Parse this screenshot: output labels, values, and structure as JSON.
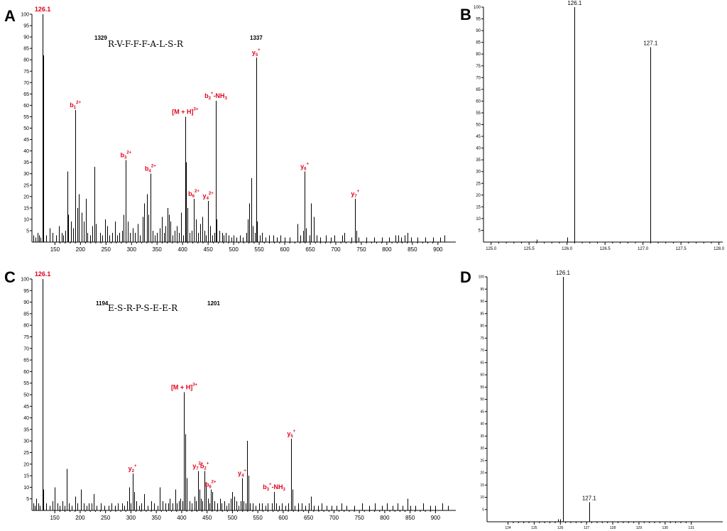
{
  "panels": {
    "A": {
      "letter": "A",
      "seq_start": "1329",
      "seq_end": "1337",
      "sequence": "R-V-F-F-F-A-L-S-R",
      "annotations": [
        {
          "text": "126.1",
          "x": 126.1,
          "y": 100
        },
        {
          "text": "b",
          "sub": "1",
          "sup": "2+",
          "x": 190,
          "y": 58
        },
        {
          "text": "b",
          "sub": "3",
          "sup": "2+",
          "x": 289,
          "y": 36
        },
        {
          "text": "b",
          "sub": "4",
          "sup": "2+",
          "x": 337,
          "y": 30
        },
        {
          "text": "[M + H]",
          "sup": "3+",
          "x": 405,
          "y": 55
        },
        {
          "text": "b",
          "sub": "2",
          "sup": "+",
          "suffix": "-NH",
          "suffix_sub": "3",
          "x": 465,
          "y": 62
        },
        {
          "text": "b",
          "sub": "6",
          "sup": "2+",
          "x": 422,
          "y": 19
        },
        {
          "text": "y",
          "sub": "4",
          "sup": "2+",
          "x": 450,
          "y": 18
        },
        {
          "text": "y",
          "sub": "5",
          "sup": "+",
          "x": 544,
          "y": 81
        },
        {
          "text": "y",
          "sub": "6",
          "sup": "+",
          "x": 639,
          "y": 31
        },
        {
          "text": "y",
          "sub": "7",
          "sup": "+",
          "x": 738,
          "y": 19
        }
      ]
    },
    "B": {
      "letter": "B",
      "labels": [
        "126.1",
        "127.1"
      ]
    },
    "C": {
      "letter": "C",
      "seq_start": "1194",
      "seq_end": "1201",
      "sequence": "E-S-R-P-S-E-E-R",
      "annotations": [
        {
          "text": "126.1",
          "x": 126.1,
          "y": 100
        },
        {
          "text": "[M + H]",
          "sup": "3+",
          "x": 405,
          "y": 51
        },
        {
          "text": "y",
          "sub": "2",
          "sup": "+",
          "x": 303,
          "y": 16
        },
        {
          "text": "y",
          "sub": "7",
          "sup": "2+",
          "x": 432,
          "y": 17
        },
        {
          "text": "b",
          "sub": "2",
          "sup": "+",
          "x": 445,
          "y": 17
        },
        {
          "text": "b",
          "sub": "6",
          "sup": "2+",
          "x": 457,
          "y": 9
        },
        {
          "text": "y",
          "sub": "4",
          "sup": "+",
          "x": 519,
          "y": 14
        },
        {
          "text": "b",
          "sub": "3",
          "sup": "+",
          "suffix": "-NH",
          "suffix_sub": "3",
          "x": 582,
          "y": 8
        },
        {
          "text": "y",
          "sub": "5",
          "sup": "+",
          "x": 616,
          "y": 31
        }
      ]
    },
    "D": {
      "letter": "D",
      "labels": [
        "126.1",
        "127.1"
      ]
    }
  },
  "chart_data": [
    {
      "type": "bar",
      "panel": "A",
      "xlim": [
        105,
        935
      ],
      "ylim": [
        0,
        100
      ],
      "xticks": [
        150,
        200,
        250,
        300,
        350,
        400,
        450,
        500,
        550,
        600,
        650,
        700,
        750,
        800,
        850,
        900
      ],
      "yticks": [
        5,
        10,
        15,
        20,
        25,
        30,
        35,
        40,
        45,
        50,
        55,
        60,
        65,
        70,
        75,
        80,
        85,
        90,
        95,
        100
      ],
      "peaks": [
        [
          108,
          3
        ],
        [
          112,
          2
        ],
        [
          116,
          4
        ],
        [
          119,
          3
        ],
        [
          121,
          2
        ],
        [
          126.1,
          100
        ],
        [
          127.1,
          82
        ],
        [
          133,
          3
        ],
        [
          140,
          6
        ],
        [
          146,
          4
        ],
        [
          152,
          3
        ],
        [
          158,
          7
        ],
        [
          163,
          4
        ],
        [
          166,
          3
        ],
        [
          170,
          5
        ],
        [
          174,
          31
        ],
        [
          176,
          12
        ],
        [
          182,
          9
        ],
        [
          186,
          6
        ],
        [
          190,
          58
        ],
        [
          194,
          15
        ],
        [
          197,
          21
        ],
        [
          202,
          13
        ],
        [
          206,
          9
        ],
        [
          210,
          19
        ],
        [
          214,
          4
        ],
        [
          219,
          3
        ],
        [
          223,
          7
        ],
        [
          227,
          33
        ],
        [
          230,
          8
        ],
        [
          238,
          4
        ],
        [
          243,
          3
        ],
        [
          248,
          10
        ],
        [
          252,
          7
        ],
        [
          257,
          3
        ],
        [
          262,
          4
        ],
        [
          268,
          9
        ],
        [
          272,
          3
        ],
        [
          276,
          4
        ],
        [
          282,
          5
        ],
        [
          285,
          12
        ],
        [
          289,
          36
        ],
        [
          292,
          9
        ],
        [
          297,
          4
        ],
        [
          302,
          6
        ],
        [
          307,
          4
        ],
        [
          312,
          8
        ],
        [
          317,
          3
        ],
        [
          322,
          11
        ],
        [
          325,
          17
        ],
        [
          330,
          21
        ],
        [
          333,
          12
        ],
        [
          337,
          30
        ],
        [
          341,
          5
        ],
        [
          345,
          3
        ],
        [
          350,
          4
        ],
        [
          355,
          6
        ],
        [
          360,
          11
        ],
        [
          363,
          4
        ],
        [
          367,
          7
        ],
        [
          370,
          15
        ],
        [
          373,
          12
        ],
        [
          376,
          9
        ],
        [
          380,
          3
        ],
        [
          384,
          5
        ],
        [
          388,
          7
        ],
        [
          393,
          4
        ],
        [
          397,
          13
        ],
        [
          401,
          3
        ],
        [
          405,
          55
        ],
        [
          407,
          35
        ],
        [
          410,
          15
        ],
        [
          414,
          4
        ],
        [
          418,
          5
        ],
        [
          422,
          19
        ],
        [
          426,
          10
        ],
        [
          430,
          4
        ],
        [
          435,
          8
        ],
        [
          439,
          11
        ],
        [
          443,
          5
        ],
        [
          446,
          3
        ],
        [
          450,
          18
        ],
        [
          454,
          7
        ],
        [
          458,
          3
        ],
        [
          462,
          4
        ],
        [
          465,
          62
        ],
        [
          467,
          10
        ],
        [
          472,
          5
        ],
        [
          477,
          4
        ],
        [
          481,
          3
        ],
        [
          485,
          4
        ],
        [
          490,
          3
        ],
        [
          495,
          2
        ],
        [
          500,
          3
        ],
        [
          506,
          2
        ],
        [
          512,
          3
        ],
        [
          518,
          2
        ],
        [
          525,
          4
        ],
        [
          528,
          10
        ],
        [
          531,
          17
        ],
        [
          534,
          28
        ],
        [
          537,
          7
        ],
        [
          541,
          4
        ],
        [
          544,
          81
        ],
        [
          546,
          9
        ],
        [
          551,
          3
        ],
        [
          556,
          4
        ],
        [
          562,
          2
        ],
        [
          570,
          3
        ],
        [
          578,
          3
        ],
        [
          585,
          2
        ],
        [
          592,
          3
        ],
        [
          600,
          2
        ],
        [
          610,
          2
        ],
        [
          625,
          8
        ],
        [
          630,
          3
        ],
        [
          636,
          5
        ],
        [
          639,
          31
        ],
        [
          641,
          6
        ],
        [
          648,
          3
        ],
        [
          652,
          17
        ],
        [
          657,
          11
        ],
        [
          662,
          3
        ],
        [
          670,
          2
        ],
        [
          680,
          3
        ],
        [
          690,
          2
        ],
        [
          697,
          3
        ],
        [
          712,
          3
        ],
        [
          717,
          4
        ],
        [
          730,
          2
        ],
        [
          738,
          19
        ],
        [
          740,
          5
        ],
        [
          745,
          2
        ],
        [
          760,
          2
        ],
        [
          775,
          2
        ],
        [
          790,
          2
        ],
        [
          805,
          2
        ],
        [
          817,
          3
        ],
        [
          823,
          3
        ],
        [
          828,
          2
        ],
        [
          835,
          3
        ],
        [
          840,
          4
        ],
        [
          848,
          2
        ],
        [
          860,
          2
        ],
        [
          875,
          2
        ],
        [
          890,
          2
        ],
        [
          905,
          2
        ],
        [
          913,
          3
        ]
      ]
    },
    {
      "type": "bar",
      "panel": "B",
      "xlim": [
        124.9,
        128.05
      ],
      "ylim": [
        0,
        100
      ],
      "xticks": [
        125.0,
        125.5,
        126.0,
        126.5,
        127.0,
        127.5,
        128.0
      ],
      "yticks": [
        5,
        10,
        15,
        20,
        25,
        30,
        35,
        40,
        45,
        50,
        55,
        60,
        65,
        70,
        75,
        80,
        85,
        90,
        95,
        100
      ],
      "peaks": [
        [
          125.6,
          1
        ],
        [
          126.0,
          2
        ],
        [
          126.1,
          100
        ],
        [
          127.1,
          83
        ]
      ]
    },
    {
      "type": "bar",
      "panel": "C",
      "xlim": [
        105,
        940
      ],
      "ylim": [
        0,
        100
      ],
      "xticks": [
        150,
        200,
        250,
        300,
        350,
        400,
        450,
        500,
        550,
        600,
        650,
        700,
        750,
        800,
        850,
        900
      ],
      "yticks": [
        5,
        10,
        15,
        20,
        25,
        30,
        35,
        40,
        45,
        50,
        55,
        60,
        65,
        70,
        75,
        80,
        85,
        90,
        95,
        100
      ],
      "peaks": [
        [
          108,
          3
        ],
        [
          111,
          2
        ],
        [
          114,
          5
        ],
        [
          117,
          3
        ],
        [
          121,
          2
        ],
        [
          126.1,
          100
        ],
        [
          127.1,
          9
        ],
        [
          133,
          3
        ],
        [
          140,
          2
        ],
        [
          146,
          4
        ],
        [
          150,
          10
        ],
        [
          155,
          3
        ],
        [
          160,
          2
        ],
        [
          165,
          4
        ],
        [
          170,
          2
        ],
        [
          174,
          18
        ],
        [
          178,
          3
        ],
        [
          184,
          2
        ],
        [
          190,
          6
        ],
        [
          194,
          3
        ],
        [
          201,
          9
        ],
        [
          207,
          3
        ],
        [
          212,
          2
        ],
        [
          217,
          3
        ],
        [
          223,
          3
        ],
        [
          227,
          7
        ],
        [
          232,
          2
        ],
        [
          240,
          3
        ],
        [
          248,
          2
        ],
        [
          256,
          2
        ],
        [
          262,
          3
        ],
        [
          268,
          2
        ],
        [
          274,
          3
        ],
        [
          282,
          3
        ],
        [
          287,
          2
        ],
        [
          292,
          4
        ],
        [
          296,
          10
        ],
        [
          299,
          3
        ],
        [
          303,
          16
        ],
        [
          306,
          8
        ],
        [
          311,
          4
        ],
        [
          316,
          2
        ],
        [
          321,
          3
        ],
        [
          326,
          7
        ],
        [
          333,
          2
        ],
        [
          340,
          4
        ],
        [
          346,
          3
        ],
        [
          352,
          2
        ],
        [
          357,
          10
        ],
        [
          362,
          4
        ],
        [
          368,
          3
        ],
        [
          373,
          3
        ],
        [
          377,
          5
        ],
        [
          382,
          3
        ],
        [
          387,
          9
        ],
        [
          390,
          3
        ],
        [
          394,
          4
        ],
        [
          398,
          5
        ],
        [
          402,
          4
        ],
        [
          405,
          51
        ],
        [
          407,
          33
        ],
        [
          410,
          14
        ],
        [
          415,
          4
        ],
        [
          420,
          3
        ],
        [
          425,
          6
        ],
        [
          428,
          4
        ],
        [
          432,
          17
        ],
        [
          435,
          9
        ],
        [
          438,
          5
        ],
        [
          441,
          4
        ],
        [
          445,
          17
        ],
        [
          448,
          12
        ],
        [
          452,
          5
        ],
        [
          455,
          3
        ],
        [
          457,
          9
        ],
        [
          460,
          8
        ],
        [
          465,
          4
        ],
        [
          470,
          3
        ],
        [
          475,
          5
        ],
        [
          479,
          3
        ],
        [
          484,
          4
        ],
        [
          488,
          2
        ],
        [
          492,
          3
        ],
        [
          497,
          5
        ],
        [
          500,
          8
        ],
        [
          504,
          6
        ],
        [
          508,
          4
        ],
        [
          512,
          2
        ],
        [
          516,
          4
        ],
        [
          519,
          14
        ],
        [
          522,
          4
        ],
        [
          526,
          3
        ],
        [
          529,
          30
        ],
        [
          531,
          15
        ],
        [
          535,
          3
        ],
        [
          540,
          3
        ],
        [
          545,
          2
        ],
        [
          552,
          3
        ],
        [
          558,
          3
        ],
        [
          565,
          2
        ],
        [
          570,
          3
        ],
        [
          578,
          3
        ],
        [
          582,
          8
        ],
        [
          586,
          3
        ],
        [
          592,
          2
        ],
        [
          598,
          3
        ],
        [
          604,
          2
        ],
        [
          610,
          3
        ],
        [
          616,
          31
        ],
        [
          618,
          9
        ],
        [
          623,
          2
        ],
        [
          630,
          3
        ],
        [
          637,
          3
        ],
        [
          643,
          2
        ],
        [
          650,
          3
        ],
        [
          655,
          6
        ],
        [
          660,
          2
        ],
        [
          668,
          2
        ],
        [
          676,
          3
        ],
        [
          685,
          2
        ],
        [
          695,
          2
        ],
        [
          705,
          2
        ],
        [
          715,
          3
        ],
        [
          725,
          2
        ],
        [
          740,
          2
        ],
        [
          755,
          3
        ],
        [
          770,
          2
        ],
        [
          780,
          3
        ],
        [
          795,
          2
        ],
        [
          805,
          3
        ],
        [
          815,
          2
        ],
        [
          825,
          3
        ],
        [
          835,
          2
        ],
        [
          845,
          5
        ],
        [
          850,
          2
        ],
        [
          860,
          2
        ],
        [
          875,
          3
        ],
        [
          890,
          2
        ],
        [
          900,
          2
        ],
        [
          913,
          3
        ],
        [
          925,
          2
        ]
      ]
    },
    {
      "type": "bar",
      "panel": "D",
      "xlim": [
        123.2,
        132.2
      ],
      "ylim": [
        0,
        100
      ],
      "xticks": [
        124,
        125,
        126,
        127,
        128,
        129,
        130,
        131
      ],
      "yticks": [
        5,
        10,
        15,
        20,
        25,
        30,
        35,
        40,
        45,
        50,
        55,
        60,
        65,
        70,
        75,
        80,
        85,
        90,
        95,
        100
      ],
      "peaks": [
        [
          125.9,
          1
        ],
        [
          126.0,
          1
        ],
        [
          126.1,
          100
        ],
        [
          127.1,
          8
        ]
      ]
    }
  ]
}
